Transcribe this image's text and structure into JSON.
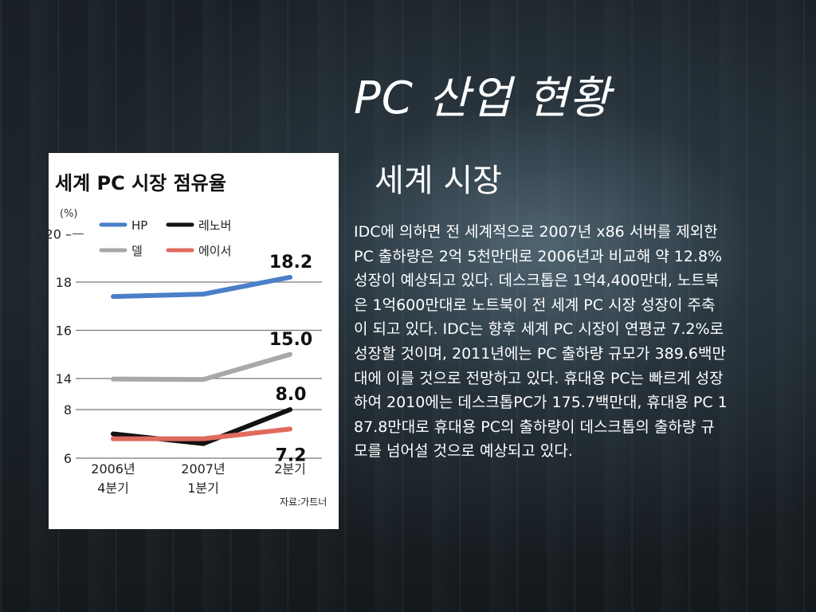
{
  "slide": {
    "title": "PC 산업 현황",
    "subtitle": "세계 시장",
    "body": " IDC에 의하면 전 세계적으로 2007년 x86 서버를 제외한 PC 출하량은 2억 5천만대로 2006년과 비교해 약 12.8% 성장이 예상되고 있다. 데스크톱은 1억4,400만대, 노트북은 1억600만대로 노트북이 전 세계 PC 시장 성장이 주축이 되고 있다. IDC는 향후 세계 PC 시장이 연평균 7.2%로 성장할 것이며, 2011년에는 PC 출하량 규모가 389.6백만 대에 이를 것으로 전망하고 있다. 휴대용 PC는 빠르게 성장하여 2010에는 데스크톱PC가 175.7백만대, 휴대용 PC 187.8만대로 휴대용 PC의 출하량이 데스크톱의 출하량 규모를 넘어설 것으로 예상되고 있다."
  },
  "chart_data": {
    "type": "line",
    "title": "세계 PC 시장 점유율",
    "unit": "(%)",
    "source": "자료:가트너",
    "categories": [
      "2006년 4분기",
      "2007년 1분기",
      "2분기"
    ],
    "category_lines": [
      [
        "2006년",
        "4분기"
      ],
      [
        "2007년",
        "1분기"
      ],
      [
        "2분기",
        ""
      ]
    ],
    "y_ticks": [
      "20",
      "18",
      "16",
      "14",
      "8",
      "6"
    ],
    "axis_break": "between 14 and 8",
    "series": [
      {
        "name": "HP",
        "color": "#4a7fc8",
        "values": [
          17.4,
          17.5,
          18.2
        ],
        "end_label": "18.2"
      },
      {
        "name": "델",
        "color": "#a8a8a8",
        "values": [
          13.9,
          13.8,
          15.0
        ],
        "end_label": "15.0"
      },
      {
        "name": "레노버",
        "color": "#111111",
        "values": [
          7.0,
          6.6,
          8.0
        ],
        "end_label": "8.0"
      },
      {
        "name": "에이서",
        "color": "#e06a5e",
        "values": [
          6.8,
          6.8,
          7.2
        ],
        "end_label": "7.2"
      }
    ],
    "legend_position": "top"
  }
}
